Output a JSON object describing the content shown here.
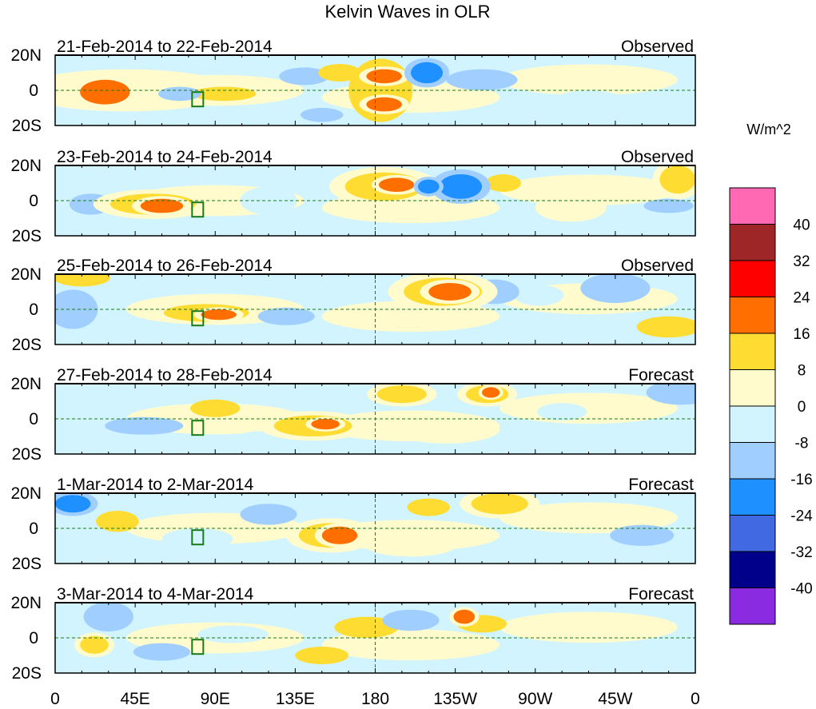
{
  "chart_data": {
    "type": "heatmap",
    "title": "Kelvin Waves in OLR",
    "units_label": "W/m^2",
    "x_ticks": [
      "0",
      "45E",
      "90E",
      "135E",
      "180",
      "135W",
      "90W",
      "45W",
      "0"
    ],
    "x_tick_lons": [
      0,
      45,
      90,
      135,
      180,
      225,
      270,
      315,
      360
    ],
    "y_ticks": [
      "20N",
      "0",
      "20S"
    ],
    "ylim": [
      -20,
      20
    ],
    "xlim": [
      0,
      360
    ],
    "colorbar": {
      "levels": [
        "40",
        "32",
        "24",
        "16",
        "8",
        "0",
        "-8",
        "-16",
        "-24",
        "-32",
        "-40"
      ],
      "colors": [
        "#FF69B4",
        "#9E2626",
        "#FF0000",
        "#FF6E00",
        "#FFDC32",
        "#FFFBCC",
        "#D2F4FF",
        "#A0CFFF",
        "#1E90FF",
        "#4169E1",
        "#00008B",
        "#8A2BE2"
      ]
    },
    "panels": [
      {
        "dates": "21-Feb-2014 to 22-Feb-2014",
        "status": "Observed",
        "blobs": [
          [
            40,
            0,
            60,
            12,
            4
          ],
          [
            28,
            -1,
            14,
            7,
            18
          ],
          [
            185,
            8,
            10,
            4,
            18
          ],
          [
            185,
            -8,
            10,
            4,
            18
          ],
          [
            183,
            0,
            18,
            18,
            10
          ],
          [
            209,
            10,
            9,
            6,
            -18
          ],
          [
            160,
            10,
            12,
            5,
            10
          ],
          [
            240,
            6,
            20,
            6,
            -10
          ],
          [
            285,
            8,
            12,
            6,
            6
          ],
          [
            300,
            -6,
            20,
            6,
            -8
          ],
          [
            95,
            -2,
            18,
            4,
            10
          ],
          [
            70,
            -2,
            12,
            4,
            -10
          ],
          [
            140,
            8,
            14,
            5,
            -9
          ],
          [
            150,
            -14,
            12,
            4,
            -10
          ]
        ]
      },
      {
        "dates": "23-Feb-2014 to 24-Feb-2014",
        "status": "Observed",
        "blobs": [
          [
            185,
            8,
            22,
            8,
            12
          ],
          [
            192,
            9,
            10,
            4,
            22
          ],
          [
            228,
            8,
            12,
            7,
            -18
          ],
          [
            210,
            8,
            6,
            4,
            -22
          ],
          [
            252,
            10,
            10,
            5,
            10
          ],
          [
            55,
            -2,
            24,
            6,
            12
          ],
          [
            60,
            -3,
            12,
            4,
            20
          ],
          [
            20,
            -2,
            12,
            6,
            -10
          ],
          [
            120,
            0,
            16,
            8,
            -8
          ],
          [
            350,
            12,
            10,
            8,
            12
          ],
          [
            345,
            -3,
            14,
            4,
            -10
          ],
          [
            200,
            -6,
            20,
            6,
            6
          ],
          [
            290,
            -4,
            20,
            8,
            6
          ]
        ]
      },
      {
        "dates": "25-Feb-2014 to 26-Feb-2014",
        "status": "Observed",
        "blobs": [
          [
            218,
            10,
            22,
            8,
            14
          ],
          [
            222,
            10,
            12,
            5,
            22
          ],
          [
            247,
            10,
            10,
            5,
            -12
          ],
          [
            272,
            8,
            14,
            6,
            -8
          ],
          [
            315,
            12,
            14,
            6,
            -14
          ],
          [
            15,
            18,
            16,
            5,
            10
          ],
          [
            10,
            0,
            10,
            8,
            -14
          ],
          [
            85,
            -2,
            24,
            5,
            10
          ],
          [
            92,
            -3,
            10,
            3,
            20
          ],
          [
            130,
            -4,
            16,
            5,
            -9
          ],
          [
            195,
            -6,
            22,
            6,
            6
          ],
          [
            345,
            -10,
            18,
            6,
            8
          ]
        ]
      },
      {
        "dates": "27-Feb-2014 to 28-Feb-2014",
        "status": "Forecast",
        "blobs": [
          [
            145,
            -4,
            22,
            6,
            12
          ],
          [
            152,
            -3,
            8,
            3,
            20
          ],
          [
            195,
            14,
            14,
            5,
            12
          ],
          [
            243,
            14,
            12,
            5,
            14
          ],
          [
            245,
            15,
            5,
            3,
            20
          ],
          [
            352,
            15,
            14,
            5,
            -16
          ],
          [
            50,
            -4,
            22,
            5,
            -10
          ],
          [
            90,
            6,
            14,
            5,
            10
          ],
          [
            115,
            -12,
            14,
            5,
            -8
          ],
          [
            285,
            4,
            14,
            5,
            -8
          ],
          [
            220,
            -6,
            30,
            8,
            6
          ]
        ]
      },
      {
        "dates": "1-Mar-2014 to 2-Mar-2014",
        "status": "Forecast",
        "blobs": [
          [
            160,
            -4,
            10,
            5,
            22
          ],
          [
            155,
            -4,
            18,
            7,
            12
          ],
          [
            10,
            14,
            10,
            5,
            -18
          ],
          [
            35,
            4,
            12,
            6,
            10
          ],
          [
            250,
            14,
            16,
            6,
            12
          ],
          [
            210,
            12,
            12,
            5,
            10
          ],
          [
            120,
            8,
            16,
            6,
            -10
          ],
          [
            330,
            -4,
            18,
            6,
            -9
          ],
          [
            80,
            -6,
            20,
            6,
            -8
          ],
          [
            200,
            -10,
            25,
            6,
            6
          ]
        ]
      },
      {
        "dates": "3-Mar-2014 to 4-Mar-2014",
        "status": "Forecast",
        "blobs": [
          [
            30,
            12,
            10,
            6,
            -16
          ],
          [
            22,
            -4,
            8,
            5,
            14
          ],
          [
            200,
            10,
            16,
            6,
            -10
          ],
          [
            240,
            8,
            14,
            5,
            10
          ],
          [
            230,
            12,
            6,
            4,
            16
          ],
          [
            175,
            6,
            18,
            6,
            8
          ],
          [
            100,
            2,
            20,
            5,
            -8
          ],
          [
            60,
            -8,
            16,
            5,
            -9
          ],
          [
            300,
            4,
            18,
            6,
            6
          ],
          [
            330,
            -8,
            18,
            6,
            -8
          ],
          [
            150,
            -10,
            15,
            5,
            8
          ]
        ]
      }
    ]
  }
}
